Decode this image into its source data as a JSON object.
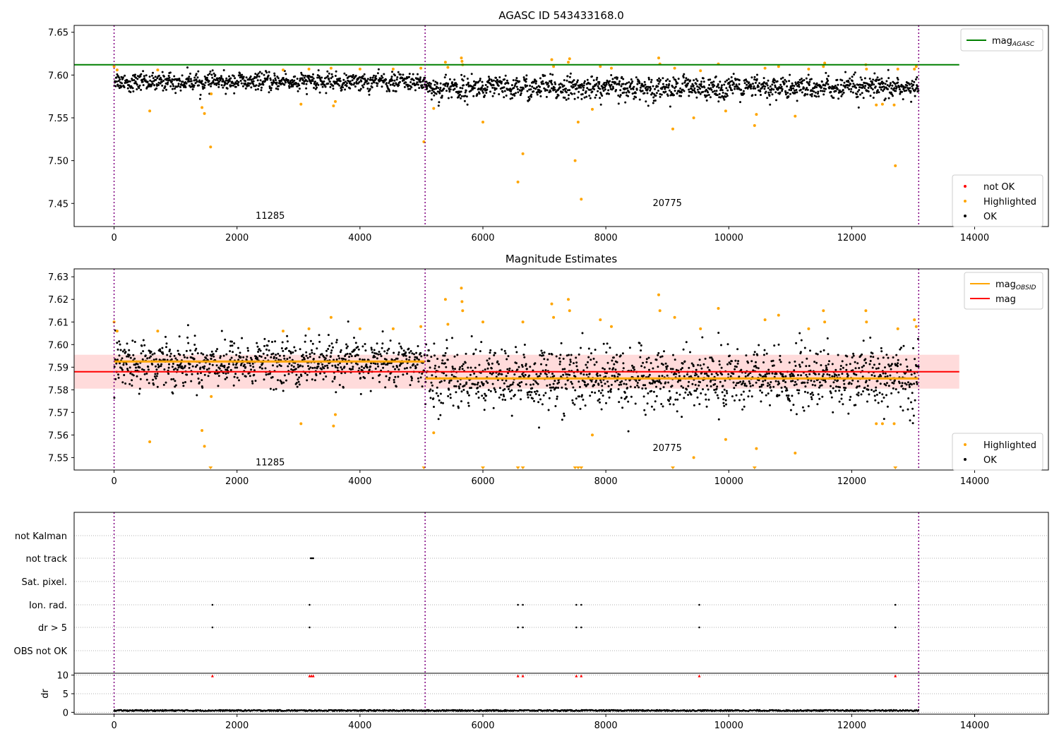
{
  "chart_data": [
    {
      "type": "scatter",
      "title": "AGASC ID 543433168.0",
      "xlim": [
        -650,
        15200
      ],
      "ylim": [
        7.423,
        7.658
      ],
      "xticks": [
        0,
        2000,
        4000,
        6000,
        8000,
        10000,
        12000,
        14000
      ],
      "yticks": [
        7.45,
        7.5,
        7.55,
        7.6,
        7.65
      ],
      "ytick_labels": [
        "7.45",
        "7.50",
        "7.55",
        "7.60",
        "7.65"
      ],
      "obsid_boundaries": [
        0,
        5060,
        13090
      ],
      "obsid_labels": [
        {
          "text": "11285",
          "x": 2540,
          "y": 7.432
        },
        {
          "text": "20775",
          "x": 9000,
          "y": 7.447
        }
      ],
      "mag_agasc": {
        "value": 7.612,
        "x_range": [
          -650,
          13750
        ],
        "color": "#008000"
      },
      "series": [
        {
          "name": "OK",
          "color": "#000000",
          "segments": [
            {
              "x": [
                0,
                5060
              ],
              "center": 7.592,
              "spread": 0.006
            },
            {
              "x": [
                5060,
                13090
              ],
              "center": 7.585,
              "spread": 0.008
            }
          ]
        },
        {
          "name": "Highlighted",
          "color": "#ffa500",
          "points": [
            [
              0,
              7.61
            ],
            [
              50,
              7.606
            ],
            [
              580,
              7.558
            ],
            [
              710,
              7.606
            ],
            [
              1430,
              7.562
            ],
            [
              1470,
              7.555
            ],
            [
              1570,
              7.516
            ],
            [
              1580,
              7.578
            ],
            [
              2750,
              7.606
            ],
            [
              3040,
              7.566
            ],
            [
              3170,
              7.607
            ],
            [
              3530,
              7.608
            ],
            [
              3570,
              7.564
            ],
            [
              3600,
              7.569
            ],
            [
              4000,
              7.607
            ],
            [
              4540,
              7.607
            ],
            [
              4990,
              7.608
            ],
            [
              5040,
              7.522
            ],
            [
              5200,
              7.561
            ],
            [
              5390,
              7.615
            ],
            [
              5430,
              7.609
            ],
            [
              5650,
              7.62
            ],
            [
              5660,
              7.616
            ],
            [
              5670,
              7.612
            ],
            [
              6000,
              7.545
            ],
            [
              6570,
              7.475
            ],
            [
              6650,
              7.508
            ],
            [
              7120,
              7.618
            ],
            [
              7150,
              7.61
            ],
            [
              7390,
              7.615
            ],
            [
              7410,
              7.619
            ],
            [
              7500,
              7.5
            ],
            [
              7550,
              7.545
            ],
            [
              7600,
              7.455
            ],
            [
              7780,
              7.56
            ],
            [
              7910,
              7.61
            ],
            [
              8090,
              7.608
            ],
            [
              8860,
              7.62
            ],
            [
              8880,
              7.613
            ],
            [
              9090,
              7.537
            ],
            [
              9120,
              7.608
            ],
            [
              9430,
              7.55
            ],
            [
              9540,
              7.605
            ],
            [
              9830,
              7.613
            ],
            [
              9950,
              7.558
            ],
            [
              10420,
              7.541
            ],
            [
              10450,
              7.554
            ],
            [
              10590,
              7.608
            ],
            [
              10810,
              7.61
            ],
            [
              11080,
              7.552
            ],
            [
              11300,
              7.607
            ],
            [
              11540,
              7.61
            ],
            [
              11560,
              7.614
            ],
            [
              12230,
              7.612
            ],
            [
              12240,
              7.607
            ],
            [
              12400,
              7.565
            ],
            [
              12500,
              7.566
            ],
            [
              12690,
              7.565
            ],
            [
              12710,
              7.494
            ],
            [
              12750,
              7.607
            ],
            [
              13020,
              7.607
            ],
            [
              13050,
              7.61
            ]
          ]
        },
        {
          "name": "not OK",
          "color": "#ff0000",
          "points": []
        }
      ],
      "legend_top": {
        "position": "top-right",
        "entries": [
          {
            "label": "mag",
            "sub": "AGASC",
            "color": "#008000"
          }
        ]
      },
      "legend_bottom": {
        "position": "bottom-right",
        "entries": [
          {
            "label": "not OK",
            "color": "#ff0000"
          },
          {
            "label": "Highlighted",
            "color": "#ffa500"
          },
          {
            "label": "OK",
            "color": "#000000"
          }
        ]
      }
    },
    {
      "type": "scatter",
      "title": "Magnitude Estimates",
      "xlim": [
        -650,
        15200
      ],
      "ylim": [
        7.5445,
        7.6335
      ],
      "xticks": [
        0,
        2000,
        4000,
        6000,
        8000,
        10000,
        12000,
        14000
      ],
      "yticks": [
        7.55,
        7.56,
        7.57,
        7.58,
        7.59,
        7.6,
        7.61,
        7.62,
        7.63
      ],
      "ytick_labels": [
        "7.55",
        "7.56",
        "7.57",
        "7.58",
        "7.59",
        "7.60",
        "7.61",
        "7.62",
        "7.63"
      ],
      "obsid_boundaries": [
        0,
        5060,
        13090
      ],
      "obsid_labels": [
        {
          "text": "11285",
          "x": 2540,
          "y": 7.5465
        },
        {
          "text": "20775",
          "x": 9000,
          "y": 7.553
        }
      ],
      "mag": {
        "value": 7.588,
        "band": [
          7.5805,
          7.5955
        ],
        "x_range": [
          -650,
          13750
        ],
        "color": "#ff0000",
        "band_color": "#ffcccc"
      },
      "mag_obsid": [
        {
          "x": [
            0,
            5060
          ],
          "value": 7.5925
        },
        {
          "x": [
            5060,
            13090
          ],
          "value": 7.585
        }
      ],
      "mag_obsid_color": "#ffa500",
      "series": [
        {
          "name": "OK",
          "color": "#000000",
          "segments": [
            {
              "x": [
                0,
                5060
              ],
              "center": 7.592,
              "spread": 0.006
            },
            {
              "x": [
                5060,
                13090
              ],
              "center": 7.585,
              "spread": 0.008
            }
          ]
        },
        {
          "name": "Highlighted",
          "color": "#ffa500",
          "points": [
            [
              0,
              7.61
            ],
            [
              50,
              7.606
            ],
            [
              580,
              7.557
            ],
            [
              710,
              7.606
            ],
            [
              1430,
              7.562
            ],
            [
              1470,
              7.555
            ],
            [
              1580,
              7.577
            ],
            [
              2750,
              7.606
            ],
            [
              3040,
              7.565
            ],
            [
              3170,
              7.607
            ],
            [
              3530,
              7.612
            ],
            [
              3570,
              7.564
            ],
            [
              3600,
              7.569
            ],
            [
              4000,
              7.607
            ],
            [
              4540,
              7.607
            ],
            [
              4990,
              7.608
            ],
            [
              5200,
              7.561
            ],
            [
              5390,
              7.62
            ],
            [
              5430,
              7.609
            ],
            [
              5650,
              7.625
            ],
            [
              5660,
              7.619
            ],
            [
              5670,
              7.615
            ],
            [
              6000,
              7.61
            ],
            [
              6650,
              7.61
            ],
            [
              7120,
              7.618
            ],
            [
              7150,
              7.612
            ],
            [
              7390,
              7.62
            ],
            [
              7410,
              7.615
            ],
            [
              7780,
              7.56
            ],
            [
              7910,
              7.611
            ],
            [
              8090,
              7.608
            ],
            [
              8860,
              7.622
            ],
            [
              8880,
              7.615
            ],
            [
              9120,
              7.612
            ],
            [
              9430,
              7.55
            ],
            [
              9540,
              7.607
            ],
            [
              9830,
              7.616
            ],
            [
              9950,
              7.558
            ],
            [
              10450,
              7.554
            ],
            [
              10590,
              7.611
            ],
            [
              10810,
              7.613
            ],
            [
              11080,
              7.552
            ],
            [
              11300,
              7.607
            ],
            [
              11540,
              7.615
            ],
            [
              11560,
              7.61
            ],
            [
              12230,
              7.615
            ],
            [
              12240,
              7.61
            ],
            [
              12400,
              7.565
            ],
            [
              12500,
              7.565
            ],
            [
              12690,
              7.565
            ],
            [
              12750,
              7.607
            ],
            [
              13020,
              7.611
            ],
            [
              13050,
              7.608
            ]
          ]
        }
      ],
      "clipped_markers": [
        1570,
        5040,
        6000,
        6570,
        6650,
        7500,
        7550,
        7600,
        9090,
        10420,
        12710
      ],
      "legend_top": {
        "position": "top-right",
        "entries": [
          {
            "label": "mag",
            "sub": "OBSID",
            "color": "#ffa500"
          },
          {
            "label": "mag",
            "sub": "",
            "color": "#ff0000"
          }
        ]
      },
      "legend_bottom": {
        "position": "bottom-right",
        "entries": [
          {
            "label": "Highlighted",
            "color": "#ffa500"
          },
          {
            "label": "OK",
            "color": "#000000"
          }
        ]
      }
    },
    {
      "type": "scatter",
      "title": "",
      "xlim": [
        -650,
        15200
      ],
      "xticks": [
        0,
        2000,
        4000,
        6000,
        8000,
        10000,
        12000,
        14000
      ],
      "obsid_boundaries": [
        0,
        5060,
        13090
      ],
      "flag_rows": [
        "not Kalman",
        "not track",
        "Sat. pixel.",
        "Ion. rad.",
        "dr > 5",
        "OBS not OK"
      ],
      "flags": {
        "not Kalman": [],
        "not track": [
          3200,
          3220,
          3240
        ],
        "Sat. pixel.": [],
        "Ion. rad.": [
          1600,
          3180,
          6570,
          6650,
          7520,
          7600,
          9520,
          12710
        ],
        "dr > 5": [
          1600,
          3180,
          6570,
          6650,
          7520,
          7600,
          9520,
          12710
        ],
        "OBS not OK": []
      },
      "dr": {
        "ylabel": "dr",
        "yticks": [
          0,
          5,
          10
        ],
        "ylim": [
          -0.5,
          10.5
        ],
        "baseline": 0.3,
        "clipped": [
          1600,
          3180,
          3210,
          3240,
          6570,
          6650,
          7520,
          7600,
          9520,
          12710
        ]
      }
    }
  ]
}
